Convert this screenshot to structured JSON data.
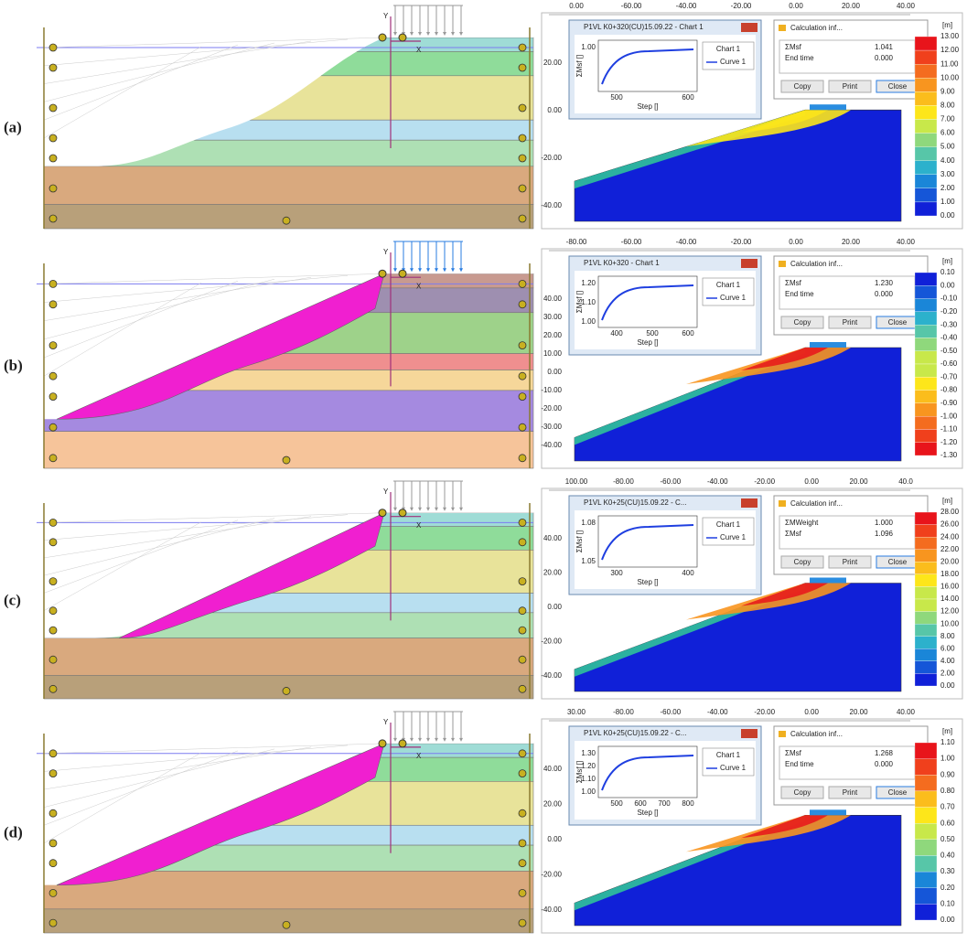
{
  "panels": [
    {
      "label": "(a)",
      "left": {
        "y_axis": "Y",
        "x_axis": "X"
      },
      "right": {
        "top_ticks": [
          "0.00",
          "-60.00",
          "-40.00",
          "-20.00",
          "0.00",
          "20.00",
          "40.00"
        ],
        "left_ticks": [
          "20.00",
          "0.00",
          "-20.00",
          "-40.00"
        ],
        "chart_window": {
          "title": "P1VL K0+320(CU)15.09.22 - Chart 1",
          "chart_title": "Chart 1",
          "legend": "Curve 1",
          "ylabel": "ΣMsf []",
          "xlabel": "Step []",
          "yticks": [
            "1.00"
          ],
          "xticks": [
            "500",
            "600"
          ]
        },
        "calc_window": {
          "title": "Calculation inf...",
          "rows": [
            [
              "ΣMsf",
              "1.041"
            ],
            [
              "End time",
              "0.000"
            ]
          ],
          "buttons": [
            "Copy",
            "Print",
            "Close"
          ]
        },
        "legend": {
          "unit": "[m]",
          "ticks": [
            "13.00",
            "12.00",
            "11.00",
            "10.00",
            "9.00",
            "8.00",
            "7.00",
            "6.00",
            "5.00",
            "4.00",
            "3.00",
            "2.00",
            "1.00",
            "0.00"
          ]
        }
      }
    },
    {
      "label": "(b)",
      "left": {
        "y_axis": "Y",
        "x_axis": "X"
      },
      "right": {
        "top_ticks": [
          "-80.00",
          "-60.00",
          "-40.00",
          "-20.00",
          "0.00",
          "20.00",
          "40.00"
        ],
        "left_ticks": [
          "40.00",
          "30.00",
          "20.00",
          "10.00",
          "0.00",
          "-10.00",
          "-20.00",
          "-30.00",
          "-40.00"
        ],
        "chart_window": {
          "title": "P1VL K0+320 - Chart 1",
          "chart_title": "Chart 1",
          "legend": "Curve 1",
          "ylabel": "ΣMsf []",
          "xlabel": "Step []",
          "yticks": [
            "1.20",
            "1.10",
            "1.00"
          ],
          "xticks": [
            "400",
            "500",
            "600"
          ]
        },
        "calc_window": {
          "title": "Calculation inf...",
          "rows": [
            [
              "ΣMsf",
              "1.230"
            ],
            [
              "End time",
              "0.000"
            ]
          ],
          "buttons": [
            "Copy",
            "Print",
            "Close"
          ]
        },
        "legend": {
          "unit": "[m]",
          "ticks": [
            "0.10",
            "0.00",
            "-0.10",
            "-0.20",
            "-0.30",
            "-0.40",
            "-0.50",
            "-0.60",
            "-0.70",
            "-0.80",
            "-0.90",
            "-1.00",
            "-1.10",
            "-1.20",
            "-1.30"
          ]
        }
      }
    },
    {
      "label": "(c)",
      "left": {
        "y_axis": "Y",
        "x_axis": "X"
      },
      "right": {
        "top_ticks": [
          "100.00",
          "-80.00",
          "-60.00",
          "-40.00",
          "-20.00",
          "0.00",
          "20.00",
          "40.0"
        ],
        "left_ticks": [
          "40.00",
          "20.00",
          "0.00",
          "-20.00",
          "-40.00"
        ],
        "chart_window": {
          "title": "P1VL K0+25(CU)15.09.22 - C...",
          "chart_title": "Chart 1",
          "legend": "Curve 1",
          "ylabel": "ΣMsf []",
          "xlabel": "Step []",
          "yticks": [
            "1.08",
            "1.05"
          ],
          "xticks": [
            "300",
            "400"
          ]
        },
        "calc_window": {
          "title": "Calculation inf...",
          "rows": [
            [
              "ΣMWeight",
              "1.000"
            ],
            [
              "ΣMsf",
              "1.096"
            ]
          ],
          "buttons": [
            "Copy",
            "Print",
            "Close"
          ]
        },
        "legend": {
          "unit": "[m]",
          "ticks": [
            "28.00",
            "26.00",
            "24.00",
            "22.00",
            "20.00",
            "18.00",
            "16.00",
            "14.00",
            "12.00",
            "10.00",
            "8.00",
            "6.00",
            "4.00",
            "2.00",
            "0.00"
          ]
        }
      }
    },
    {
      "label": "(d)",
      "left": {
        "y_axis": "Y",
        "x_axis": "X"
      },
      "right": {
        "top_ticks": [
          "30.00",
          "-80.00",
          "-60.00",
          "-40.00",
          "-20.00",
          "0.00",
          "20.00",
          "40.00"
        ],
        "left_ticks": [
          "40.00",
          "20.00",
          "0.00",
          "-20.00",
          "-40.00"
        ],
        "chart_window": {
          "title": "P1VL K0+25(CU)15.09.22 - C...",
          "chart_title": "Chart 1",
          "legend": "Curve 1",
          "ylabel": "ΣMsf []",
          "xlabel": "Step []",
          "yticks": [
            "1.30",
            "1.20",
            "1.10",
            "1.00"
          ],
          "xticks": [
            "500",
            "600",
            "700",
            "800"
          ]
        },
        "calc_window": {
          "title": "Calculation inf...",
          "rows": [
            [
              "ΣMsf",
              "1.268"
            ],
            [
              "End time",
              "0.000"
            ]
          ],
          "buttons": [
            "Copy",
            "Print",
            "Close"
          ]
        },
        "legend": {
          "unit": "[m]",
          "ticks": [
            "1.10",
            "1.00",
            "0.90",
            "0.80",
            "0.70",
            "0.60",
            "0.50",
            "0.40",
            "0.30",
            "0.20",
            "0.10",
            "0.00"
          ]
        }
      }
    }
  ]
}
